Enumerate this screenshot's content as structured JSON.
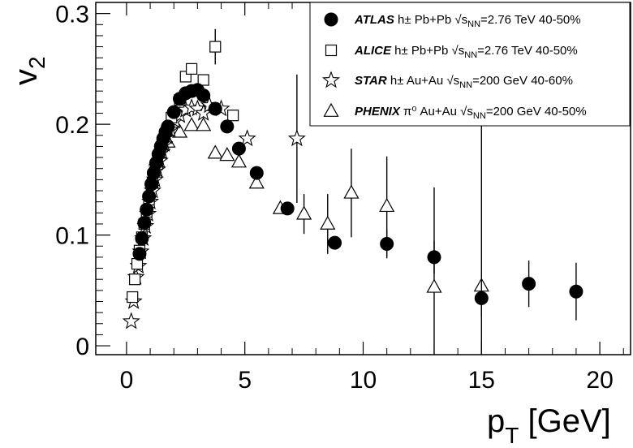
{
  "chart_data": {
    "type": "scatter",
    "xlabel": "p",
    "xlabel_sub": "T",
    "xlabel_unit": " [GeV]",
    "ylabel": "v",
    "ylabel_sub": "2",
    "xlim": [
      -1.3,
      21.3
    ],
    "ylim": [
      -0.008,
      0.31
    ],
    "xticks": [
      0,
      5,
      10,
      15,
      20
    ],
    "xtick_labels": [
      "0",
      "5",
      "10",
      "15",
      "20"
    ],
    "yticks": [
      0,
      0.1,
      0.2,
      0.3
    ],
    "ytick_labels": [
      "0",
      "0.1",
      "0.2",
      "0.3"
    ],
    "legend_position": "top-right",
    "series": [
      {
        "name": "ATLAS",
        "label_rest": " h± Pb+Pb √s",
        "label_sub": "NN",
        "label_tail": "=2.76 TeV 40-50%",
        "marker": "filled-circle",
        "points": [
          {
            "x": 0.55,
            "y": 0.083
          },
          {
            "x": 0.65,
            "y": 0.097
          },
          {
            "x": 0.75,
            "y": 0.111
          },
          {
            "x": 0.85,
            "y": 0.123
          },
          {
            "x": 0.95,
            "y": 0.135
          },
          {
            "x": 1.05,
            "y": 0.146
          },
          {
            "x": 1.15,
            "y": 0.156
          },
          {
            "x": 1.25,
            "y": 0.165
          },
          {
            "x": 1.35,
            "y": 0.173
          },
          {
            "x": 1.45,
            "y": 0.18
          },
          {
            "x": 1.55,
            "y": 0.187
          },
          {
            "x": 1.65,
            "y": 0.193
          },
          {
            "x": 1.75,
            "y": 0.198
          },
          {
            "x": 2.0,
            "y": 0.211
          },
          {
            "x": 2.25,
            "y": 0.223
          },
          {
            "x": 2.5,
            "y": 0.228
          },
          {
            "x": 2.75,
            "y": 0.23
          },
          {
            "x": 3.0,
            "y": 0.231
          },
          {
            "x": 3.25,
            "y": 0.226
          },
          {
            "x": 3.75,
            "y": 0.214
          },
          {
            "x": 4.25,
            "y": 0.198
          },
          {
            "x": 4.75,
            "y": 0.178
          },
          {
            "x": 5.5,
            "y": 0.156
          },
          {
            "x": 6.8,
            "y": 0.124
          },
          {
            "x": 8.8,
            "y": 0.093,
            "err": 0.006
          },
          {
            "x": 11.0,
            "y": 0.092,
            "err": 0.013
          },
          {
            "x": 13.0,
            "y": 0.08,
            "err": 0.015
          },
          {
            "x": 15.0,
            "y": 0.043,
            "err": 0.017
          },
          {
            "x": 17.0,
            "y": 0.056,
            "err": 0.021
          },
          {
            "x": 19.0,
            "y": 0.049,
            "err": 0.026
          }
        ]
      },
      {
        "name": "ALICE",
        "label_rest": " h± Pb+Pb √s",
        "label_sub": "NN",
        "label_tail": "=2.76 TeV 40-50%",
        "marker": "open-square",
        "points": [
          {
            "x": 0.25,
            "y": 0.044
          },
          {
            "x": 0.35,
            "y": 0.06
          },
          {
            "x": 0.45,
            "y": 0.074
          },
          {
            "x": 0.55,
            "y": 0.086
          },
          {
            "x": 0.65,
            "y": 0.098
          },
          {
            "x": 0.75,
            "y": 0.11
          },
          {
            "x": 0.85,
            "y": 0.121
          },
          {
            "x": 0.95,
            "y": 0.132
          },
          {
            "x": 1.1,
            "y": 0.147
          },
          {
            "x": 1.3,
            "y": 0.164
          },
          {
            "x": 1.5,
            "y": 0.18
          },
          {
            "x": 1.7,
            "y": 0.194
          },
          {
            "x": 1.9,
            "y": 0.206
          },
          {
            "x": 2.25,
            "y": 0.222
          },
          {
            "x": 2.5,
            "y": 0.243
          },
          {
            "x": 2.75,
            "y": 0.25
          },
          {
            "x": 3.25,
            "y": 0.24
          },
          {
            "x": 3.75,
            "y": 0.27,
            "err": 0.016
          },
          {
            "x": 4.5,
            "y": 0.208
          }
        ]
      },
      {
        "name": "STAR",
        "label_rest": " h± Au+Au √s",
        "label_sub": "NN",
        "label_tail": "=200 GeV 40-60%",
        "marker": "open-star",
        "points": [
          {
            "x": 0.2,
            "y": 0.022
          },
          {
            "x": 0.3,
            "y": 0.04
          },
          {
            "x": 0.4,
            "y": 0.062
          },
          {
            "x": 0.5,
            "y": 0.072
          },
          {
            "x": 0.6,
            "y": 0.085
          },
          {
            "x": 0.7,
            "y": 0.097
          },
          {
            "x": 0.8,
            "y": 0.108
          },
          {
            "x": 0.9,
            "y": 0.119
          },
          {
            "x": 1.0,
            "y": 0.13
          },
          {
            "x": 1.1,
            "y": 0.14
          },
          {
            "x": 1.2,
            "y": 0.15
          },
          {
            "x": 1.3,
            "y": 0.159
          },
          {
            "x": 1.4,
            "y": 0.167
          },
          {
            "x": 1.5,
            "y": 0.175
          },
          {
            "x": 1.6,
            "y": 0.182
          },
          {
            "x": 1.7,
            "y": 0.189
          },
          {
            "x": 1.85,
            "y": 0.195
          },
          {
            "x": 2.05,
            "y": 0.203
          },
          {
            "x": 2.25,
            "y": 0.208
          },
          {
            "x": 2.5,
            "y": 0.213
          },
          {
            "x": 2.75,
            "y": 0.215
          },
          {
            "x": 3.0,
            "y": 0.214
          },
          {
            "x": 3.25,
            "y": 0.21
          },
          {
            "x": 3.5,
            "y": 0.217
          },
          {
            "x": 4.0,
            "y": 0.214
          },
          {
            "x": 5.1,
            "y": 0.187
          },
          {
            "x": 7.2,
            "y": 0.187,
            "err": 0.058
          }
        ]
      },
      {
        "name": "PHENIX",
        "label_rest": " π⁰ Au+Au √s",
        "label_sub": "NN",
        "label_tail": "=200 GeV 40-50%",
        "marker": "open-triangle",
        "points": [
          {
            "x": 1.25,
            "y": 0.168
          },
          {
            "x": 1.75,
            "y": 0.184
          },
          {
            "x": 2.25,
            "y": 0.193
          },
          {
            "x": 2.75,
            "y": 0.199
          },
          {
            "x": 3.25,
            "y": 0.199
          },
          {
            "x": 3.75,
            "y": 0.174
          },
          {
            "x": 4.25,
            "y": 0.172
          },
          {
            "x": 4.75,
            "y": 0.166
          },
          {
            "x": 5.5,
            "y": 0.147
          },
          {
            "x": 6.5,
            "y": 0.124
          },
          {
            "x": 7.5,
            "y": 0.119,
            "err": 0.018
          },
          {
            "x": 8.5,
            "y": 0.11,
            "err": 0.027
          },
          {
            "x": 9.5,
            "y": 0.138,
            "err": 0.04
          },
          {
            "x": 11.0,
            "y": 0.126,
            "err": 0.045
          },
          {
            "x": 13.0,
            "y": 0.053,
            "err": 0.09
          },
          {
            "x": 15.0,
            "y": 0.054,
            "err": 0.15
          }
        ]
      }
    ]
  }
}
